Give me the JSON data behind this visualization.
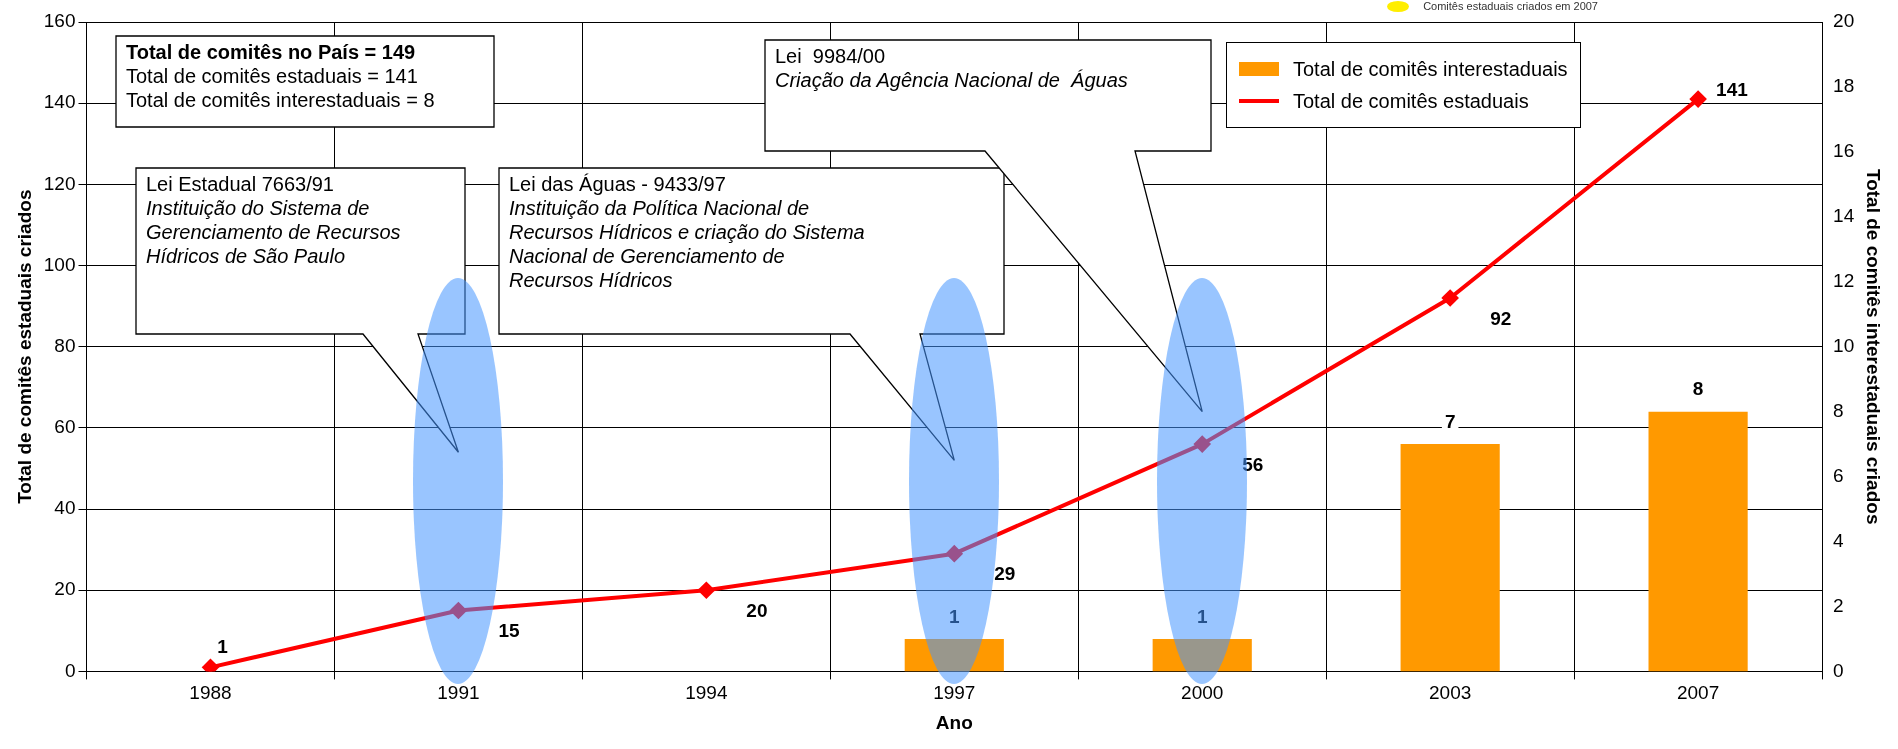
{
  "chart_data": {
    "type": "bar",
    "categories": [
      "1988",
      "1991",
      "1994",
      "1997",
      "2000",
      "2003",
      "2007"
    ],
    "series": [
      {
        "name": "Total de comitês interestaduais",
        "axis": "y2",
        "color": "#ff9900",
        "values": [
          null,
          null,
          null,
          1,
          1,
          7,
          8
        ]
      },
      {
        "name": "Total de comitês estaduais",
        "type": "line",
        "axis": "y",
        "color": "#ff0000",
        "values": [
          1,
          15,
          20,
          29,
          56,
          92,
          141
        ]
      }
    ],
    "ylim": [
      0,
      160
    ],
    "yticks": [
      0,
      20,
      40,
      60,
      80,
      100,
      120,
      140,
      160
    ],
    "y2lim": [
      0,
      20
    ],
    "y2ticks": [
      0,
      2,
      4,
      6,
      8,
      10,
      12,
      14,
      16,
      18,
      20
    ],
    "xlabel": "Ano",
    "ylabel": "Total de comitês estaduais criados",
    "y2label": "Total de comitês interestaduais criados",
    "grid": true,
    "legend": "top right",
    "marker": "diamond",
    "line_style": "solid",
    "data_labels": true,
    "annotations": [
      "Total de comitês no País = 149\nTotal de comitês estaduais = 141\nTotal de comitês interestaduais = 8",
      "Lei Estadual 7663/91\nInstituição do Sistema de\nGerenciamento de Recursos\nHídricos de São Paulo",
      "Lei das Águas - 9433/97\nInstituição da Política Nacional de\nRecursos Hídricos e criação do Sistema\nNacional de Gerenciamento de\nRecursos Hídricos",
      "Lei  9984/00\nCriação da Agência Nacional de  Águas",
      "Comitês estaduais criados em 2007"
    ]
  }
}
